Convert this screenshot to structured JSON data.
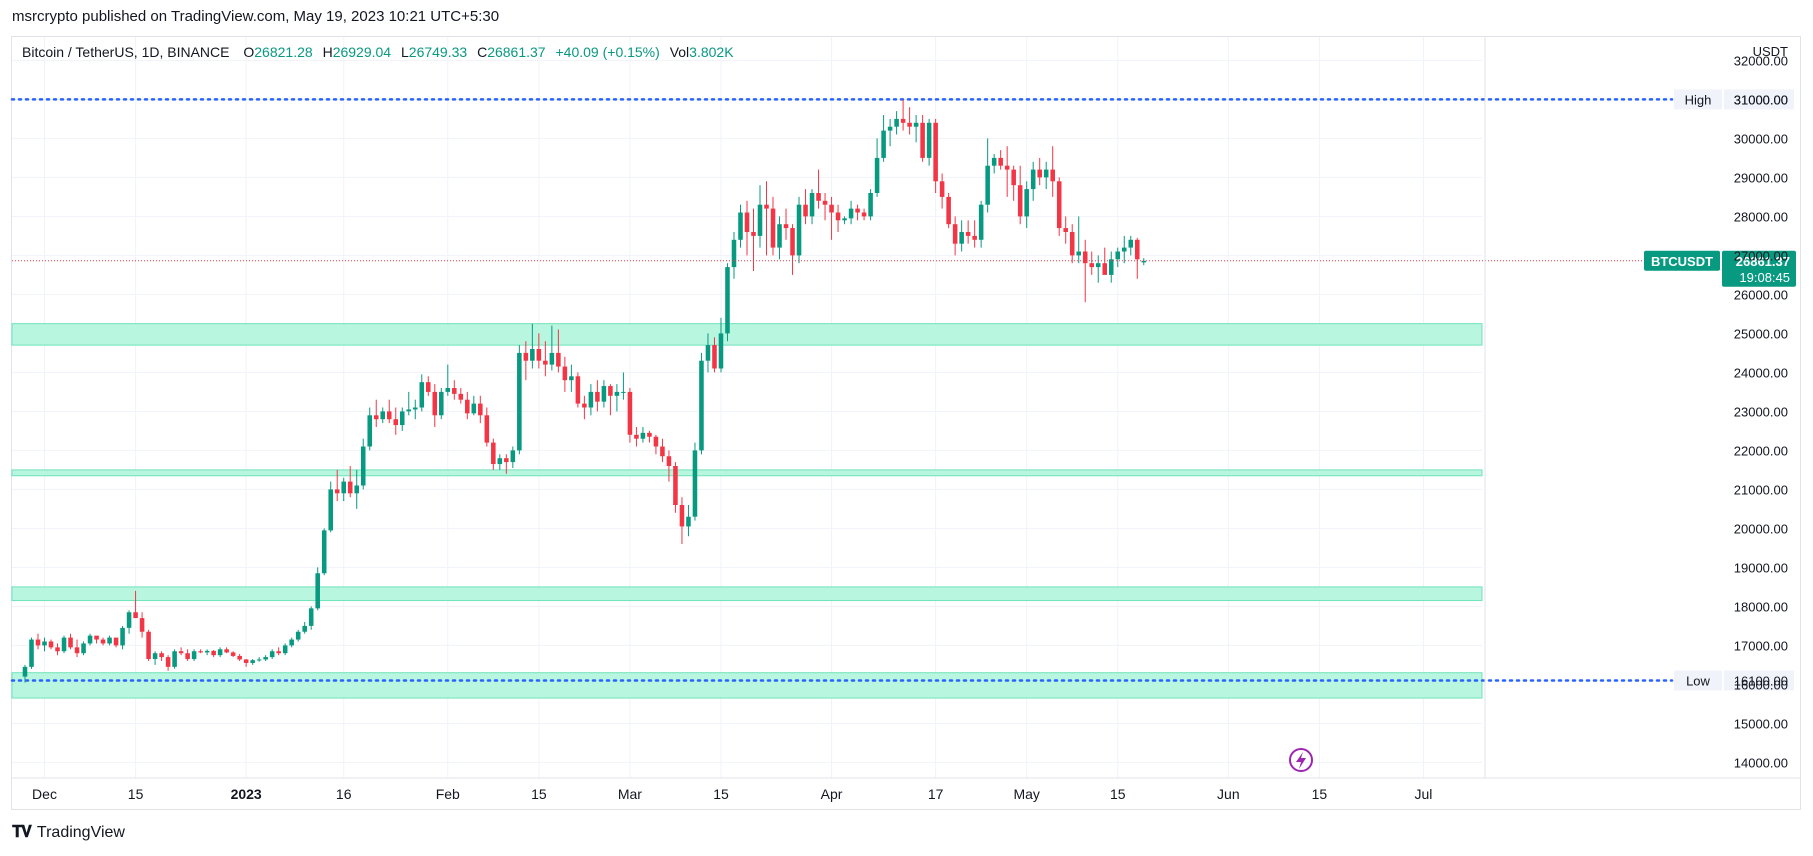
{
  "header": {
    "published": "msrcrypto published on TradingView.com, May 19, 2023 10:21 UTC+5:30"
  },
  "legend": {
    "symbol": "Bitcoin / TetherUS, 1D, BINANCE",
    "o_label": "O",
    "o": "26821.28",
    "h_label": "H",
    "h": "26929.04",
    "l_label": "L",
    "l": "26749.33",
    "c_label": "C",
    "c": "26861.37",
    "change": "+40.09 (+0.15%)",
    "vol_label": "Vol",
    "vol": "3.802K"
  },
  "footer": {
    "logo_text": "TradingView"
  },
  "colors": {
    "up": "#089981",
    "down": "#f23645",
    "zone": "#b9f6df",
    "zone_border": "#6fe3b8",
    "level_line": "#2962ff",
    "price_line": "#f23645"
  },
  "chart_data": {
    "type": "candlestick",
    "currency_label": "USDT",
    "y_ticks": [
      32000,
      31000,
      30000,
      29000,
      28000,
      27000,
      26000,
      25000,
      24000,
      23000,
      22000,
      21000,
      20000,
      19000,
      18000,
      17000,
      16000,
      15000,
      14000
    ],
    "y_tick_labels": [
      "32000.00",
      "31000.00",
      "30000.00",
      "29000.00",
      "28000.00",
      "27000.00",
      "26000.00",
      "25000.00",
      "24000.00",
      "23000.00",
      "22000.00",
      "21000.00",
      "20000.00",
      "19000.00",
      "18000.00",
      "17000.00",
      "16000.00",
      "15000.00",
      "14000.00"
    ],
    "ylim": [
      13600,
      32600
    ],
    "x_range": [
      "2022-11-28",
      "2023-07-10"
    ],
    "x_ticks": [
      {
        "date": "2022-12-01",
        "label": "Dec",
        "bold": false
      },
      {
        "date": "2022-12-15",
        "label": "15",
        "bold": false
      },
      {
        "date": "2023-01-01",
        "label": "2023",
        "bold": true
      },
      {
        "date": "2023-01-16",
        "label": "16",
        "bold": false
      },
      {
        "date": "2023-02-01",
        "label": "Feb",
        "bold": false
      },
      {
        "date": "2023-02-15",
        "label": "15",
        "bold": false
      },
      {
        "date": "2023-03-01",
        "label": "Mar",
        "bold": false
      },
      {
        "date": "2023-03-15",
        "label": "15",
        "bold": false
      },
      {
        "date": "2023-04-01",
        "label": "Apr",
        "bold": false
      },
      {
        "date": "2023-04-17",
        "label": "17",
        "bold": false
      },
      {
        "date": "2023-05-01",
        "label": "May",
        "bold": false
      },
      {
        "date": "2023-05-15",
        "label": "15",
        "bold": false
      },
      {
        "date": "2023-06-01",
        "label": "Jun",
        "bold": false
      },
      {
        "date": "2023-06-15",
        "label": "15",
        "bold": false
      },
      {
        "date": "2023-07-01",
        "label": "Jul",
        "bold": false
      }
    ],
    "levels": [
      {
        "label": "High",
        "value": 31000,
        "value_label": "31000.00"
      },
      {
        "label": "Low",
        "value": 16100,
        "value_label": "16100.00"
      }
    ],
    "zones": [
      {
        "low": 24700,
        "high": 25250
      },
      {
        "low": 21350,
        "high": 21500
      },
      {
        "low": 18150,
        "high": 18500
      },
      {
        "low": 15650,
        "high": 16300
      }
    ],
    "last_price": {
      "symbol": "BTCUSDT",
      "value": 26861.37,
      "value_label": "26861.37",
      "countdown": "19:08:45"
    },
    "candles_start": "2022-11-28",
    "candles": [
      [
        16200,
        16500,
        16050,
        16450
      ],
      [
        16450,
        17200,
        16400,
        17150
      ],
      [
        17150,
        17300,
        16900,
        17000
      ],
      [
        17000,
        17200,
        16850,
        17100
      ],
      [
        17100,
        17150,
        16900,
        16950
      ],
      [
        16950,
        17050,
        16750,
        16850
      ],
      [
        16850,
        17250,
        16800,
        17200
      ],
      [
        17200,
        17300,
        16900,
        16950
      ],
      [
        16950,
        17150,
        16700,
        16800
      ],
      [
        16800,
        17100,
        16750,
        17050
      ],
      [
        17050,
        17300,
        17000,
        17250
      ],
      [
        17250,
        17200,
        17050,
        17150
      ],
      [
        17150,
        17200,
        17000,
        17050
      ],
      [
        17050,
        17250,
        17000,
        17200
      ],
      [
        17200,
        17100,
        16950,
        17000
      ],
      [
        17000,
        17500,
        16900,
        17450
      ],
      [
        17450,
        17900,
        17300,
        17850
      ],
      [
        17850,
        18400,
        17700,
        17700
      ],
      [
        17700,
        17850,
        17200,
        17350
      ],
      [
        17350,
        17400,
        16600,
        16650
      ],
      [
        16650,
        16850,
        16500,
        16800
      ],
      [
        16800,
        16850,
        16600,
        16700
      ],
      [
        16700,
        16750,
        16350,
        16450
      ],
      [
        16450,
        16900,
        16400,
        16850
      ],
      [
        16850,
        16950,
        16750,
        16800
      ],
      [
        16800,
        16900,
        16600,
        16650
      ],
      [
        16650,
        16900,
        16600,
        16850
      ],
      [
        16850,
        16900,
        16800,
        16820
      ],
      [
        16820,
        16900,
        16750,
        16860
      ],
      [
        16860,
        16880,
        16700,
        16750
      ],
      [
        16750,
        16950,
        16700,
        16900
      ],
      [
        16900,
        16950,
        16800,
        16820
      ],
      [
        16820,
        16850,
        16700,
        16730
      ],
      [
        16730,
        16780,
        16600,
        16640
      ],
      [
        16640,
        16650,
        16450,
        16550
      ],
      [
        16550,
        16650,
        16500,
        16620
      ],
      [
        16620,
        16700,
        16580,
        16640
      ],
      [
        16640,
        16750,
        16600,
        16700
      ],
      [
        16700,
        16900,
        16650,
        16850
      ],
      [
        16850,
        16950,
        16750,
        16800
      ],
      [
        16800,
        17050,
        16750,
        17000
      ],
      [
        17000,
        17200,
        16950,
        17150
      ],
      [
        17150,
        17400,
        17100,
        17350
      ],
      [
        17350,
        17600,
        17300,
        17500
      ],
      [
        17500,
        18000,
        17400,
        17950
      ],
      [
        17950,
        19000,
        17900,
        18850
      ],
      [
        18850,
        20000,
        18800,
        19950
      ],
      [
        19950,
        21200,
        19900,
        21000
      ],
      [
        21000,
        21500,
        20700,
        20900
      ],
      [
        20900,
        21300,
        20700,
        21200
      ],
      [
        21200,
        21600,
        20800,
        20900
      ],
      [
        20900,
        21500,
        20500,
        21100
      ],
      [
        21100,
        22300,
        21000,
        22100
      ],
      [
        22100,
        23100,
        22000,
        22900
      ],
      [
        22900,
        23300,
        22600,
        22800
      ],
      [
        22800,
        23100,
        22700,
        23000
      ],
      [
        23000,
        23300,
        22700,
        22800
      ],
      [
        22800,
        23100,
        22400,
        22650
      ],
      [
        22650,
        23100,
        22500,
        23000
      ],
      [
        23000,
        23500,
        22900,
        23050
      ],
      [
        23050,
        23300,
        22800,
        23100
      ],
      [
        23100,
        23950,
        23000,
        23750
      ],
      [
        23750,
        23900,
        23400,
        23500
      ],
      [
        23500,
        23700,
        22600,
        22900
      ],
      [
        22900,
        23600,
        22800,
        23500
      ],
      [
        23500,
        24200,
        23400,
        23600
      ],
      [
        23600,
        23800,
        23300,
        23450
      ],
      [
        23450,
        23600,
        23200,
        23300
      ],
      [
        23300,
        23500,
        22800,
        22950
      ],
      [
        22950,
        23400,
        22900,
        23200
      ],
      [
        23200,
        23400,
        22700,
        22900
      ],
      [
        22900,
        23100,
        22100,
        22200
      ],
      [
        22200,
        22300,
        21500,
        21650
      ],
      [
        21650,
        21900,
        21500,
        21800
      ],
      [
        21800,
        21900,
        21400,
        21700
      ],
      [
        21700,
        22100,
        21550,
        22000
      ],
      [
        22000,
        24700,
        21900,
        24500
      ],
      [
        24500,
        24800,
        23800,
        24300
      ],
      [
        24300,
        25250,
        24100,
        24600
      ],
      [
        24600,
        25000,
        24100,
        24300
      ],
      [
        24300,
        24800,
        23900,
        24200
      ],
      [
        24200,
        25200,
        24050,
        24500
      ],
      [
        24500,
        25100,
        24000,
        24150
      ],
      [
        24150,
        24400,
        23500,
        23800
      ],
      [
        23800,
        24200,
        23500,
        23900
      ],
      [
        23900,
        24000,
        23100,
        23200
      ],
      [
        23200,
        23400,
        22800,
        23100
      ],
      [
        23100,
        23700,
        22900,
        23500
      ],
      [
        23500,
        23800,
        23000,
        23250
      ],
      [
        23250,
        23800,
        23100,
        23650
      ],
      [
        23650,
        23700,
        22900,
        23400
      ],
      [
        23400,
        23700,
        23000,
        23500
      ],
      [
        23500,
        24000,
        23300,
        23500
      ],
      [
        23500,
        23600,
        22200,
        22400
      ],
      [
        22400,
        22600,
        22100,
        22300
      ],
      [
        22300,
        22600,
        22200,
        22450
      ],
      [
        22450,
        22500,
        22200,
        22350
      ],
      [
        22350,
        22400,
        21900,
        22100
      ],
      [
        22100,
        22300,
        21700,
        21850
      ],
      [
        21850,
        22000,
        21200,
        21600
      ],
      [
        21600,
        21700,
        20400,
        20600
      ],
      [
        20600,
        20800,
        19600,
        20050
      ],
      [
        20050,
        20600,
        19800,
        20300
      ],
      [
        20300,
        22200,
        20200,
        22000
      ],
      [
        22000,
        24500,
        21900,
        24300
      ],
      [
        24300,
        25000,
        24000,
        24700
      ],
      [
        24700,
        24900,
        24000,
        24100
      ],
      [
        24100,
        25400,
        24000,
        25000
      ],
      [
        25000,
        26800,
        24800,
        26700
      ],
      [
        26700,
        27600,
        26400,
        27400
      ],
      [
        27400,
        28300,
        27200,
        28100
      ],
      [
        28100,
        28400,
        27000,
        27600
      ],
      [
        27600,
        28200,
        26600,
        27500
      ],
      [
        27500,
        28800,
        27200,
        28300
      ],
      [
        28300,
        28900,
        27000,
        28200
      ],
      [
        28200,
        28500,
        27000,
        27200
      ],
      [
        27200,
        28000,
        26900,
        27800
      ],
      [
        27800,
        28200,
        27400,
        27700
      ],
      [
        27700,
        27800,
        26500,
        27000
      ],
      [
        27000,
        28500,
        26800,
        28300
      ],
      [
        28300,
        28700,
        27800,
        28000
      ],
      [
        28000,
        28700,
        27800,
        28600
      ],
      [
        28600,
        29200,
        28200,
        28400
      ],
      [
        28400,
        28600,
        27900,
        28300
      ],
      [
        28300,
        28500,
        27400,
        28100
      ],
      [
        28100,
        28300,
        27600,
        27900
      ],
      [
        27900,
        28000,
        27800,
        27950
      ],
      [
        27950,
        28400,
        27800,
        28200
      ],
      [
        28200,
        28300,
        27900,
        28100
      ],
      [
        28100,
        28200,
        27900,
        28000
      ],
      [
        28000,
        28700,
        27900,
        28600
      ],
      [
        28600,
        30000,
        28500,
        29500
      ],
      [
        29500,
        30600,
        29400,
        30200
      ],
      [
        30200,
        30500,
        29800,
        30300
      ],
      [
        30300,
        30700,
        30100,
        30500
      ],
      [
        30500,
        31000,
        30200,
        30400
      ],
      [
        30400,
        30800,
        30100,
        30300
      ],
      [
        30300,
        30600,
        29900,
        30400
      ],
      [
        30400,
        30600,
        29400,
        29500
      ],
      [
        29500,
        30500,
        29300,
        30400
      ],
      [
        30400,
        30500,
        28600,
        28900
      ],
      [
        28900,
        29100,
        28200,
        28500
      ],
      [
        28500,
        28600,
        27700,
        27800
      ],
      [
        27800,
        28000,
        27000,
        27300
      ],
      [
        27300,
        27900,
        27100,
        27600
      ],
      [
        27600,
        27900,
        27300,
        27500
      ],
      [
        27500,
        27900,
        27200,
        27400
      ],
      [
        27400,
        28400,
        27200,
        28300
      ],
      [
        28300,
        30000,
        28100,
        29300
      ],
      [
        29300,
        29600,
        29100,
        29500
      ],
      [
        29500,
        29700,
        29200,
        29300
      ],
      [
        29300,
        29800,
        28500,
        29200
      ],
      [
        29200,
        29300,
        28400,
        28800
      ],
      [
        28800,
        29300,
        27800,
        28000
      ],
      [
        28000,
        28900,
        27700,
        28700
      ],
      [
        28700,
        29400,
        28400,
        29200
      ],
      [
        29200,
        29500,
        28800,
        29000
      ],
      [
        29000,
        29400,
        28700,
        29200
      ],
      [
        29200,
        29800,
        28500,
        28900
      ],
      [
        28900,
        29000,
        27500,
        27700
      ],
      [
        27700,
        28000,
        27300,
        27600
      ],
      [
        27600,
        27800,
        26800,
        27000
      ],
      [
        27000,
        28000,
        26800,
        27100
      ],
      [
        27100,
        27400,
        25800,
        26800
      ],
      [
        26800,
        27100,
        26500,
        26700
      ],
      [
        26700,
        27000,
        26300,
        26800
      ],
      [
        26800,
        27200,
        26600,
        26500
      ],
      [
        26500,
        27100,
        26300,
        26900
      ],
      [
        26900,
        27200,
        26700,
        27100
      ],
      [
        27100,
        27500,
        26800,
        27200
      ],
      [
        27200,
        27500,
        27000,
        27400
      ],
      [
        27400,
        27450,
        26400,
        26900
      ],
      [
        26821.28,
        26929.04,
        26749.33,
        26861.37
      ]
    ]
  }
}
